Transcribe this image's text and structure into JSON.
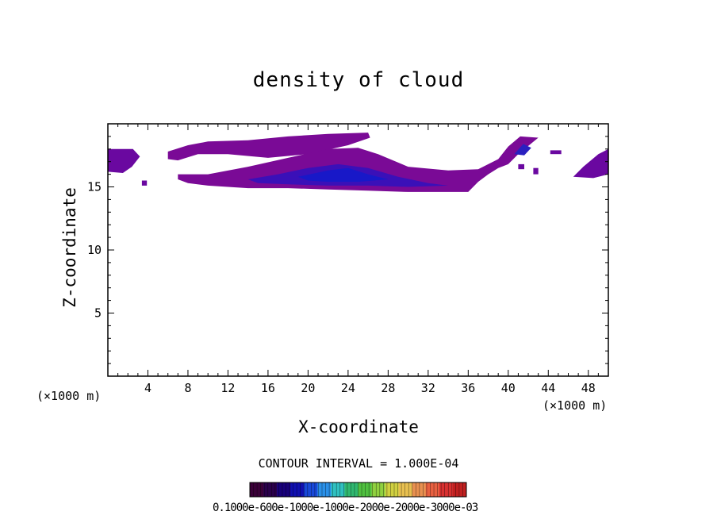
{
  "chart_data": {
    "type": "heatmap",
    "title": "density of cloud",
    "xlabel": "X-coordinate",
    "ylabel": "Z-coordinate",
    "x_unit": "(×1000 m)",
    "xlim": [
      0,
      50
    ],
    "ylim": [
      0,
      20
    ],
    "x_ticks": [
      4,
      8,
      12,
      16,
      20,
      24,
      28,
      32,
      36,
      40,
      44,
      48
    ],
    "y_ticks": [
      5,
      10,
      15
    ],
    "contour_interval_text": "CONTOUR INTERVAL = 1.000E-04",
    "colorbar_labels_text": "0.1000e-600e-1000e-1000e-2000e-2000e-3000e-03",
    "colorbar_colors": [
      "#3a0038",
      "#2a004a",
      "#18007a",
      "#1010b0",
      "#1848d8",
      "#2a90e8",
      "#30c0c0",
      "#30b870",
      "#50c040",
      "#90d040",
      "#d0d040",
      "#e8c050",
      "#e89050",
      "#e86040",
      "#d83030",
      "#c02020"
    ],
    "cloud_regions": [
      {
        "name": "main-upper-band",
        "level": 2,
        "polygon": [
          [
            6.0,
            17.8
          ],
          [
            8.0,
            18.3
          ],
          [
            10.0,
            18.6
          ],
          [
            14.0,
            18.7
          ],
          [
            18.0,
            19.0
          ],
          [
            22.0,
            19.2
          ],
          [
            26.0,
            19.3
          ],
          [
            26.2,
            18.9
          ],
          [
            24.0,
            18.3
          ],
          [
            20.0,
            17.6
          ],
          [
            16.0,
            17.3
          ],
          [
            12.0,
            17.6
          ],
          [
            9.0,
            17.6
          ],
          [
            7.0,
            17.1
          ],
          [
            6.0,
            17.2
          ]
        ]
      },
      {
        "name": "main-lower-band",
        "level": 2,
        "polygon": [
          [
            7.0,
            16.0
          ],
          [
            10.0,
            16.0
          ],
          [
            14.0,
            16.6
          ],
          [
            18.0,
            17.3
          ],
          [
            22.0,
            18.0
          ],
          [
            25.0,
            18.1
          ],
          [
            27.0,
            17.6
          ],
          [
            30.0,
            16.6
          ],
          [
            34.0,
            16.3
          ],
          [
            37.0,
            16.4
          ],
          [
            39.0,
            17.2
          ],
          [
            40.0,
            18.2
          ],
          [
            41.2,
            19.0
          ],
          [
            43.0,
            18.9
          ],
          [
            41.0,
            17.6
          ],
          [
            40.0,
            16.8
          ],
          [
            39.0,
            16.5
          ],
          [
            38.0,
            16.0
          ],
          [
            37.0,
            15.4
          ],
          [
            36.0,
            14.6
          ],
          [
            30.0,
            14.6
          ],
          [
            26.0,
            14.7
          ],
          [
            22.0,
            14.8
          ],
          [
            18.0,
            14.9
          ],
          [
            14.0,
            14.9
          ],
          [
            10.0,
            15.1
          ],
          [
            8.0,
            15.3
          ],
          [
            7.0,
            15.6
          ]
        ]
      },
      {
        "name": "core-dense",
        "level": 5,
        "polygon": [
          [
            14.0,
            15.6
          ],
          [
            17.0,
            16.0
          ],
          [
            20.0,
            16.5
          ],
          [
            23.0,
            16.8
          ],
          [
            26.0,
            16.5
          ],
          [
            29.0,
            15.8
          ],
          [
            32.0,
            15.3
          ],
          [
            34.0,
            15.1
          ],
          [
            30.0,
            15.0
          ],
          [
            26.0,
            15.1
          ],
          [
            22.0,
            15.1
          ],
          [
            18.0,
            15.2
          ],
          [
            15.0,
            15.3
          ]
        ]
      },
      {
        "name": "core-densest",
        "level": 7,
        "polygon": [
          [
            19.0,
            15.8
          ],
          [
            22.0,
            16.3
          ],
          [
            24.0,
            16.5
          ],
          [
            26.0,
            16.0
          ],
          [
            28.0,
            15.6
          ],
          [
            25.0,
            15.4
          ],
          [
            22.0,
            15.4
          ],
          [
            20.0,
            15.5
          ]
        ]
      },
      {
        "name": "right-lobe-core",
        "level": 6,
        "polygon": [
          [
            40.6,
            17.6
          ],
          [
            41.5,
            18.4
          ],
          [
            42.3,
            18.1
          ],
          [
            41.6,
            17.5
          ]
        ]
      },
      {
        "name": "left-edge-patch",
        "level": 3,
        "polygon": [
          [
            0.0,
            16.2
          ],
          [
            0.0,
            18.0
          ],
          [
            2.5,
            18.0
          ],
          [
            3.2,
            17.4
          ],
          [
            2.4,
            16.6
          ],
          [
            1.5,
            16.1
          ]
        ]
      },
      {
        "name": "right-edge-patch",
        "level": 3,
        "polygon": [
          [
            46.5,
            15.8
          ],
          [
            47.5,
            16.6
          ],
          [
            49.0,
            17.6
          ],
          [
            50.0,
            18.0
          ],
          [
            50.0,
            16.0
          ],
          [
            48.5,
            15.7
          ]
        ]
      },
      {
        "name": "small-blob-1",
        "level": 3,
        "polygon": [
          [
            3.4,
            15.1
          ],
          [
            3.9,
            15.1
          ],
          [
            3.9,
            15.5
          ],
          [
            3.4,
            15.5
          ]
        ]
      },
      {
        "name": "small-blob-2",
        "level": 3,
        "polygon": [
          [
            44.2,
            17.6
          ],
          [
            45.3,
            17.6
          ],
          [
            45.3,
            17.9
          ],
          [
            44.2,
            17.9
          ]
        ]
      },
      {
        "name": "small-blob-3",
        "level": 3,
        "polygon": [
          [
            42.5,
            16.0
          ],
          [
            43.0,
            16.0
          ],
          [
            43.0,
            16.5
          ],
          [
            42.5,
            16.5
          ]
        ]
      },
      {
        "name": "small-blob-4",
        "level": 3,
        "polygon": [
          [
            41.0,
            16.4
          ],
          [
            41.6,
            16.4
          ],
          [
            41.6,
            16.8
          ],
          [
            41.0,
            16.8
          ]
        ]
      }
    ],
    "level_colors": {
      "2": "#7a0a96",
      "3": "#6a08a0",
      "5": "#3a10b8",
      "6": "#2a20c0",
      "7": "#1818c8"
    }
  }
}
